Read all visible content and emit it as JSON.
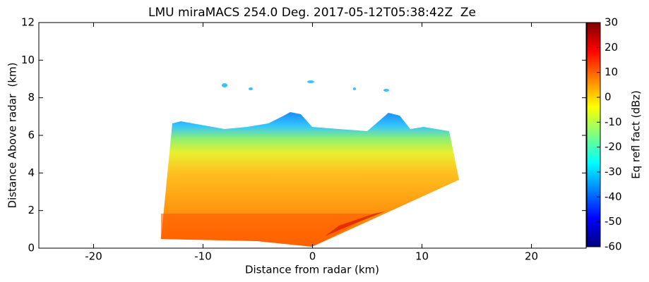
{
  "chart_data": {
    "type": "heatmap",
    "title": "LMU miraMACS 254.0 Deg. 2017-05-12T05:38:42Z  Ze",
    "x_label": "Distance from radar (km)",
    "y_label": "Distance Above radar  (km)",
    "xlim": [
      -25,
      25
    ],
    "xticks": [
      -20,
      -10,
      0,
      10,
      20
    ],
    "ylim": [
      0,
      12
    ],
    "yticks": [
      0,
      2,
      4,
      6,
      8,
      10,
      12
    ],
    "colormap": "jet",
    "colorbar": {
      "label": "Eq refl fact (dBz)",
      "lim": [
        -60,
        30
      ],
      "ticks": [
        -60,
        -50,
        -40,
        -30,
        -20,
        -10,
        0,
        10,
        20,
        30
      ]
    }
  }
}
